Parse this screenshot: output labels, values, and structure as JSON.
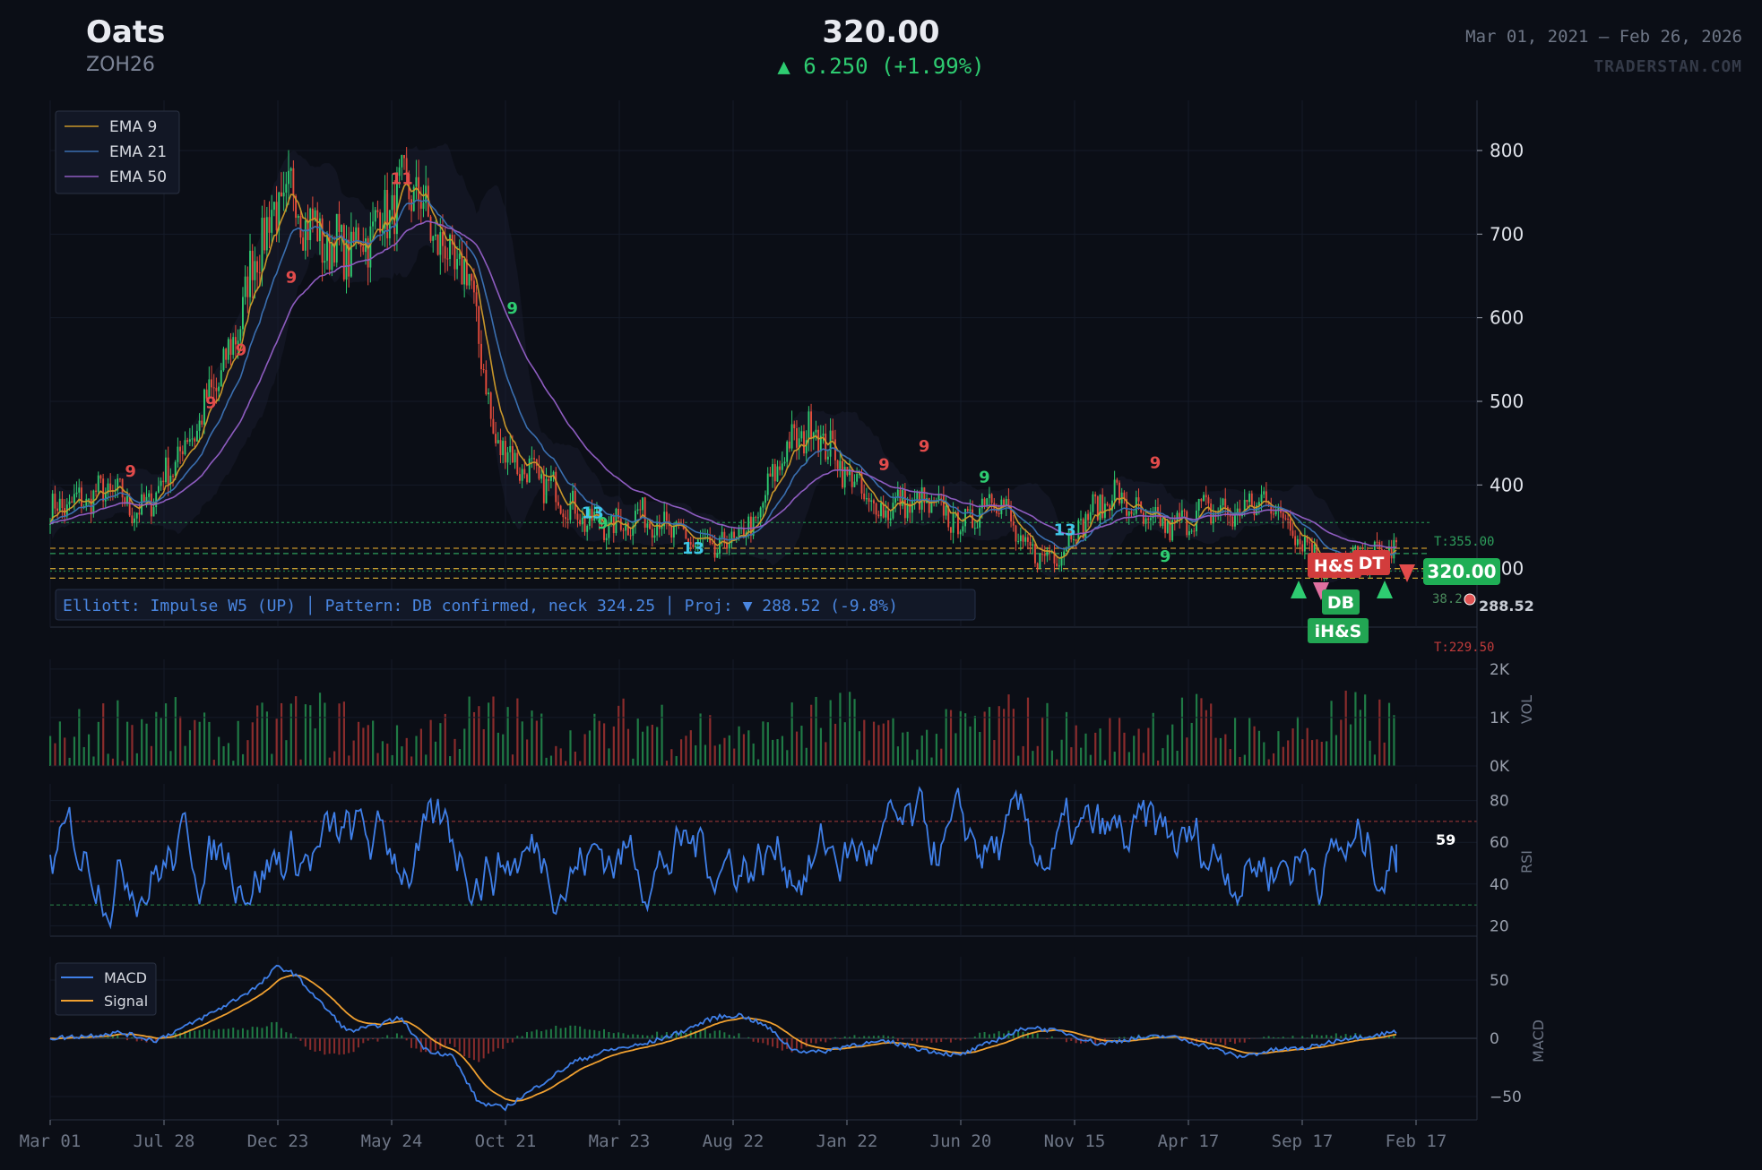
{
  "header": {
    "title": "Oats",
    "symbol": "ZOH26",
    "price": "320.00",
    "change": "▲ 6.250 (+1.99%)",
    "date_range": "Mar 01, 2021 — Feb 26, 2026",
    "brand": "TRADERSTAN.COM"
  },
  "colors": {
    "background": "#0b0e16",
    "up": "#2ecc71",
    "down": "#e74c3c",
    "ema9": "#c8962a",
    "ema21": "#3a6fb0",
    "ema50": "#8e5cc0",
    "rsi": "#3f7fe8",
    "macd": "#3f7fe8",
    "signal": "#f0a030"
  },
  "chart_data": [
    {
      "type": "candlestick",
      "panel": "price",
      "x_ticks": [
        "Mar 01",
        "Jul 28",
        "Dec 23",
        "May 24",
        "Oct 21",
        "Mar 23",
        "Aug 22",
        "Jan 22",
        "Jun 20",
        "Nov 15",
        "Apr 17",
        "Sep 17",
        "Feb 17"
      ],
      "y_ticks": [
        "300",
        "400",
        "500",
        "600",
        "700",
        "800"
      ],
      "ylim": [
        230,
        860
      ],
      "close_path": [
        [
          0,
          370
        ],
        [
          3,
          380
        ],
        [
          6,
          395
        ],
        [
          9,
          365
        ],
        [
          12,
          420
        ],
        [
          15,
          480
        ],
        [
          18,
          560
        ],
        [
          21,
          700
        ],
        [
          24,
          750
        ],
        [
          27,
          690
        ],
        [
          30,
          680
        ],
        [
          33,
          720
        ],
        [
          36,
          760
        ],
        [
          39,
          680
        ],
        [
          42,
          640
        ],
        [
          44,
          460
        ],
        [
          47,
          420
        ],
        [
          50,
          395
        ],
        [
          53,
          360
        ],
        [
          56,
          350
        ],
        [
          59,
          365
        ],
        [
          62,
          345
        ],
        [
          66,
          320
        ],
        [
          70,
          350
        ],
        [
          73,
          440
        ],
        [
          76,
          470
        ],
        [
          79,
          420
        ],
        [
          82,
          370
        ],
        [
          85,
          378
        ],
        [
          88,
          375
        ],
        [
          91,
          350
        ],
        [
          94,
          395
        ],
        [
          97,
          320
        ],
        [
          100,
          315
        ],
        [
          103,
          360
        ],
        [
          106,
          390
        ],
        [
          109,
          355
        ],
        [
          112,
          350
        ],
        [
          115,
          372
        ],
        [
          118,
          365
        ],
        [
          121,
          385
        ],
        [
          124,
          345
        ],
        [
          127,
          302
        ],
        [
          130,
          312
        ],
        [
          134,
          320
        ]
      ],
      "legend": [
        "EMA 9",
        "EMA 21",
        "EMA 50"
      ],
      "annotation": "Elliott: Impulse W5 (UP)  │  Pattern: DB confirmed, neck 324.25  │  Proj: ▼ 288.52 (-9.8%)",
      "pattern_labels": [
        "H&S",
        "DT",
        "DB",
        "iH&S"
      ],
      "last_price_label": "320.00",
      "projection_label": "288.52",
      "target_upper": "T:355.00",
      "target_lower": "T:229.50",
      "fib_label": "38.2",
      "td_counts": [
        {
          "label": "9",
          "x": 8,
          "price": 410,
          "side": "sell"
        },
        {
          "label": "9",
          "x": 16,
          "price": 492,
          "side": "sell"
        },
        {
          "label": "9",
          "x": 19,
          "price": 555,
          "side": "sell"
        },
        {
          "label": "9",
          "x": 24,
          "price": 642,
          "side": "sell"
        },
        {
          "label": "11",
          "x": 35,
          "price": 760,
          "side": "sell"
        },
        {
          "label": "9",
          "x": 46,
          "price": 605,
          "side": "buy"
        },
        {
          "label": "13",
          "x": 54,
          "price": 360,
          "side": "buy13"
        },
        {
          "label": "9",
          "x": 55,
          "price": 348,
          "side": "buy"
        },
        {
          "label": "13",
          "x": 64,
          "price": 318,
          "side": "buy13"
        },
        {
          "label": "9",
          "x": 83,
          "price": 418,
          "side": "sell"
        },
        {
          "label": "9",
          "x": 87,
          "price": 440,
          "side": "sell"
        },
        {
          "label": "9",
          "x": 93,
          "price": 403,
          "side": "buy"
        },
        {
          "label": "13",
          "x": 101,
          "price": 340,
          "side": "buy13"
        },
        {
          "label": "9",
          "x": 110,
          "price": 420,
          "side": "sell"
        },
        {
          "label": "9",
          "x": 111,
          "price": 308,
          "side": "buy"
        },
        {
          "label": "13",
          "x": 131,
          "price": 306,
          "side": "buy13"
        }
      ]
    },
    {
      "type": "bar",
      "panel": "volume",
      "ylabel": "VOL",
      "y_ticks": [
        "0K",
        "1K",
        "2K"
      ],
      "ylim": [
        0,
        2200
      ]
    },
    {
      "type": "line",
      "panel": "rsi",
      "ylabel": "RSI",
      "y_ticks": [
        "20",
        "40",
        "60",
        "80"
      ],
      "ylim": [
        15,
        88
      ],
      "overbought": 70,
      "oversold": 30,
      "last_label": "59"
    },
    {
      "type": "line",
      "panel": "macd",
      "ylabel": "MACD",
      "y_ticks": [
        "50",
        "0",
        "−50"
      ],
      "ylim": [
        -70,
        70
      ],
      "legend": [
        "MACD",
        "Signal"
      ],
      "macd_path": [
        [
          0,
          0
        ],
        [
          4,
          2
        ],
        [
          8,
          5
        ],
        [
          12,
          -2
        ],
        [
          16,
          12
        ],
        [
          20,
          28
        ],
        [
          24,
          46
        ],
        [
          26,
          62
        ],
        [
          28,
          55
        ],
        [
          31,
          30
        ],
        [
          34,
          6
        ],
        [
          37,
          10
        ],
        [
          40,
          18
        ],
        [
          43,
          -10
        ],
        [
          46,
          -15
        ],
        [
          49,
          -55
        ],
        [
          52,
          -60
        ],
        [
          56,
          -40
        ],
        [
          60,
          -20
        ],
        [
          64,
          -10
        ],
        [
          68,
          -5
        ],
        [
          72,
          5
        ],
        [
          76,
          18
        ],
        [
          79,
          20
        ],
        [
          82,
          10
        ],
        [
          85,
          -10
        ],
        [
          88,
          -12
        ],
        [
          92,
          -5
        ],
        [
          96,
          -3
        ],
        [
          100,
          -10
        ],
        [
          104,
          -15
        ],
        [
          108,
          -2
        ],
        [
          112,
          10
        ],
        [
          116,
          5
        ],
        [
          120,
          -5
        ],
        [
          124,
          0
        ],
        [
          128,
          2
        ],
        [
          132,
          -6
        ],
        [
          136,
          -16
        ],
        [
          140,
          -10
        ],
        [
          144,
          -8
        ],
        [
          148,
          0
        ],
        [
          152,
          3
        ],
        [
          154,
          6
        ]
      ]
    }
  ]
}
